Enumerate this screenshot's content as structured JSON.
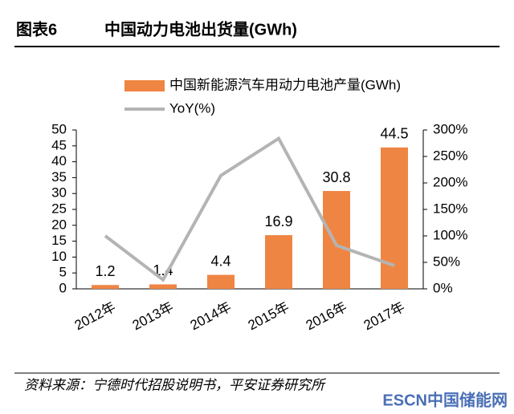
{
  "header": {
    "label": "图表6",
    "title": "中国动力电池出货量(GWh)"
  },
  "chart_data": {
    "type": "bar-line",
    "categories": [
      "2012年",
      "2013年",
      "2014年",
      "2015年",
      "2016年",
      "2017年"
    ],
    "series": [
      {
        "name": "中国新能源汽车用动力电池产量(GWh)",
        "type": "bar",
        "color": "#ef8542",
        "values": [
          1.2,
          1.4,
          4.4,
          16.9,
          30.8,
          44.5
        ]
      },
      {
        "name": "YoY(%)",
        "type": "line",
        "axis": "y2",
        "color": "#b4b4b4",
        "values": [
          100,
          17,
          214,
          284,
          82,
          44
        ]
      }
    ],
    "ylim": [
      0,
      50
    ],
    "yticks": [
      0,
      5,
      10,
      15,
      20,
      25,
      30,
      35,
      40,
      45,
      50
    ],
    "y2lim": [
      0,
      300
    ],
    "y2ticks": [
      {
        "value": 0,
        "label": "0%"
      },
      {
        "value": 50,
        "label": "50%"
      },
      {
        "value": 100,
        "label": "100%"
      },
      {
        "value": 150,
        "label": "150%"
      },
      {
        "value": 200,
        "label": "200%"
      },
      {
        "value": 250,
        "label": "250%"
      },
      {
        "value": 300,
        "label": "300%"
      }
    ],
    "grid": false
  },
  "footer": {
    "source": "资料来源：宁德时代招股说明书，平安证券研究所",
    "watermark": "ESCN中国储能网"
  }
}
